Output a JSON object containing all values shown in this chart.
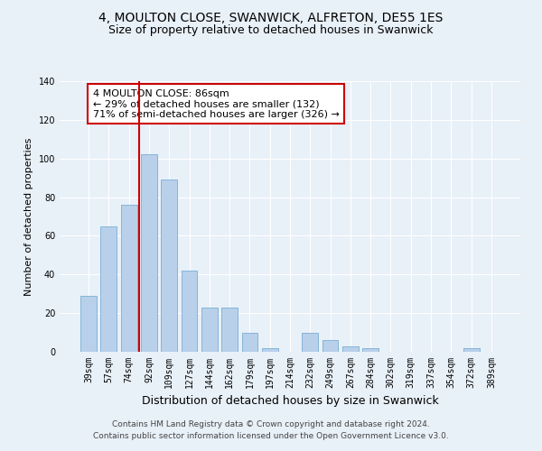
{
  "title1": "4, MOULTON CLOSE, SWANWICK, ALFRETON, DE55 1ES",
  "title2": "Size of property relative to detached houses in Swanwick",
  "xlabel": "Distribution of detached houses by size in Swanwick",
  "ylabel": "Number of detached properties",
  "categories": [
    "39sqm",
    "57sqm",
    "74sqm",
    "92sqm",
    "109sqm",
    "127sqm",
    "144sqm",
    "162sqm",
    "179sqm",
    "197sqm",
    "214sqm",
    "232sqm",
    "249sqm",
    "267sqm",
    "284sqm",
    "302sqm",
    "319sqm",
    "337sqm",
    "354sqm",
    "372sqm",
    "389sqm"
  ],
  "values": [
    29,
    65,
    76,
    102,
    89,
    42,
    23,
    23,
    10,
    2,
    0,
    10,
    6,
    3,
    2,
    0,
    0,
    0,
    0,
    2,
    0
  ],
  "bar_color": "#b8d0ea",
  "bar_edge_color": "#7aadd4",
  "vline_color": "#cc0000",
  "annotation_text": "4 MOULTON CLOSE: 86sqm\n← 29% of detached houses are smaller (132)\n71% of semi-detached houses are larger (326) →",
  "annotation_box_color": "#ffffff",
  "annotation_box_edge": "#cc0000",
  "ylim": [
    0,
    140
  ],
  "yticks": [
    0,
    20,
    40,
    60,
    80,
    100,
    120,
    140
  ],
  "bg_color": "#e8f0f8",
  "plot_bg_color": "#e8f0f8",
  "footer1": "Contains HM Land Registry data © Crown copyright and database right 2024.",
  "footer2": "Contains public sector information licensed under the Open Government Licence v3.0.",
  "title1_fontsize": 10,
  "title2_fontsize": 9,
  "xlabel_fontsize": 9,
  "ylabel_fontsize": 8,
  "tick_fontsize": 7,
  "footer_fontsize": 6.5,
  "annotation_fontsize": 8,
  "vline_bin_index": 3,
  "bar_width": 0.8
}
